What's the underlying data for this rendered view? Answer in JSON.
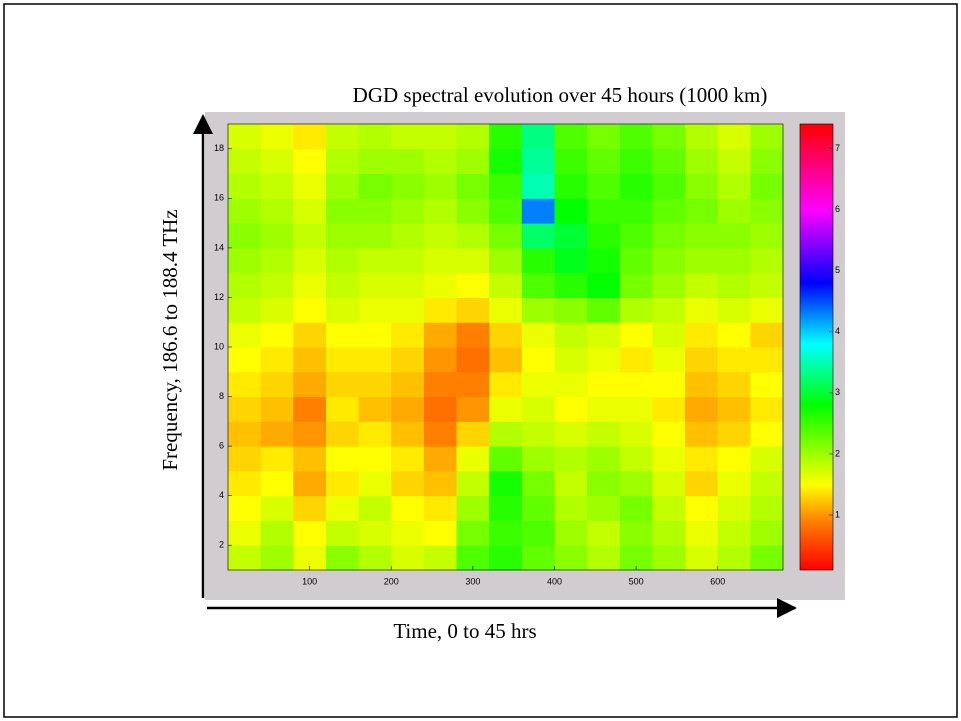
{
  "chart_data": {
    "type": "heatmap",
    "title": "DGD spectral evolution over 45 hours (1000 km)",
    "x_label": "Time, 0 to 45 hrs",
    "y_label": "Frequency, 186.6 to 188.4 THz",
    "x": [
      20,
      60,
      100,
      140,
      180,
      220,
      260,
      300,
      340,
      380,
      420,
      460,
      500,
      540,
      580,
      620,
      660
    ],
    "y": [
      1.5,
      2.5,
      3.5,
      4.5,
      5.5,
      6.5,
      7.5,
      8.5,
      9.5,
      10.5,
      11.5,
      12.5,
      13.5,
      14.5,
      15.5,
      16.5,
      17.5,
      18.5
    ],
    "z": [
      [
        1.8,
        2.0,
        1.6,
        2.1,
        1.9,
        1.7,
        1.8,
        2.4,
        2.6,
        2.3,
        2.1,
        1.9,
        2.2,
        2.0,
        1.7,
        1.9,
        2.2
      ],
      [
        1.6,
        1.9,
        1.5,
        1.8,
        1.7,
        1.6,
        1.5,
        2.2,
        2.5,
        2.4,
        2.0,
        1.8,
        2.1,
        1.9,
        1.6,
        1.8,
        2.0
      ],
      [
        1.5,
        1.7,
        1.3,
        1.6,
        1.8,
        1.5,
        1.4,
        2.0,
        2.6,
        2.3,
        1.9,
        2.0,
        2.2,
        1.8,
        1.5,
        1.7,
        1.9
      ],
      [
        1.4,
        1.5,
        1.1,
        1.4,
        1.6,
        1.3,
        1.2,
        1.8,
        2.7,
        2.2,
        1.8,
        2.1,
        2.0,
        1.7,
        1.3,
        1.6,
        1.8
      ],
      [
        1.3,
        1.4,
        1.2,
        1.5,
        1.5,
        1.4,
        1.1,
        1.6,
        2.3,
        2.0,
        1.9,
        2.0,
        1.8,
        1.6,
        1.4,
        1.5,
        1.7
      ],
      [
        1.2,
        1.1,
        1.0,
        1.3,
        1.4,
        1.2,
        0.9,
        1.3,
        1.9,
        1.8,
        1.7,
        1.8,
        1.7,
        1.5,
        1.2,
        1.3,
        1.5
      ],
      [
        1.3,
        1.2,
        0.9,
        1.4,
        1.2,
        1.1,
        0.8,
        1.0,
        1.6,
        1.7,
        1.5,
        1.6,
        1.6,
        1.4,
        1.1,
        1.2,
        1.4
      ],
      [
        1.4,
        1.3,
        1.1,
        1.3,
        1.3,
        1.2,
        0.9,
        0.9,
        1.4,
        1.6,
        1.6,
        1.5,
        1.5,
        1.5,
        1.2,
        1.3,
        1.5
      ],
      [
        1.5,
        1.4,
        1.2,
        1.4,
        1.4,
        1.3,
        1.0,
        0.8,
        1.2,
        1.5,
        1.7,
        1.6,
        1.4,
        1.6,
        1.3,
        1.4,
        1.4
      ],
      [
        1.6,
        1.5,
        1.3,
        1.5,
        1.5,
        1.4,
        1.1,
        0.9,
        1.3,
        1.6,
        1.8,
        1.7,
        1.5,
        1.7,
        1.4,
        1.5,
        1.3
      ],
      [
        1.8,
        1.7,
        1.5,
        1.7,
        1.6,
        1.6,
        1.4,
        1.3,
        1.6,
        2.0,
        2.1,
        2.3,
        1.9,
        1.8,
        1.6,
        1.7,
        1.6
      ],
      [
        1.9,
        1.8,
        1.6,
        1.8,
        1.7,
        1.7,
        1.6,
        1.5,
        1.8,
        2.4,
        2.6,
        2.8,
        2.2,
        2.0,
        1.8,
        1.9,
        1.8
      ],
      [
        2.0,
        1.9,
        1.7,
        1.9,
        1.8,
        1.8,
        1.7,
        1.7,
        2.0,
        2.6,
        2.9,
        2.7,
        2.3,
        2.1,
        2.0,
        2.0,
        1.9
      ],
      [
        2.1,
        2.0,
        1.8,
        2.0,
        2.0,
        1.9,
        1.8,
        1.9,
        2.2,
        3.2,
        3.0,
        2.6,
        2.4,
        2.2,
        2.1,
        2.1,
        2.0
      ],
      [
        2.0,
        1.9,
        1.7,
        2.1,
        2.1,
        2.0,
        1.9,
        2.1,
        2.4,
        4.3,
        2.8,
        2.5,
        2.5,
        2.3,
        2.2,
        2.0,
        2.1
      ],
      [
        1.9,
        1.8,
        1.6,
        2.0,
        2.2,
        2.1,
        2.0,
        2.2,
        2.5,
        3.5,
        2.6,
        2.4,
        2.6,
        2.4,
        2.1,
        1.9,
        2.2
      ],
      [
        1.8,
        1.7,
        1.5,
        1.9,
        2.0,
        2.0,
        1.9,
        2.0,
        2.7,
        3.4,
        2.5,
        2.3,
        2.5,
        2.3,
        2.0,
        1.8,
        2.1
      ],
      [
        1.7,
        1.6,
        1.4,
        1.8,
        1.9,
        1.8,
        1.8,
        1.9,
        2.6,
        3.3,
        2.4,
        2.2,
        2.4,
        2.2,
        1.9,
        1.7,
        2.0
      ]
    ],
    "xlim": [
      0,
      680
    ],
    "ylim": [
      1,
      19
    ],
    "xticks": [
      100,
      200,
      300,
      400,
      500,
      600
    ],
    "yticks": [
      2,
      4,
      6,
      8,
      10,
      12,
      14,
      16,
      18
    ],
    "clim": [
      0.1,
      7.4
    ],
    "colorbar_ticks": [
      1,
      2,
      3,
      4,
      5,
      6,
      7
    ],
    "colormap": [
      [
        0.1,
        "#ff0000"
      ],
      [
        0.9,
        "#ff8000"
      ],
      [
        1.5,
        "#ffff00"
      ],
      [
        2.8,
        "#00ff00"
      ],
      [
        3.8,
        "#00ffff"
      ],
      [
        4.8,
        "#0000ff"
      ],
      [
        6.0,
        "#ff00ff"
      ],
      [
        7.4,
        "#ff0000"
      ]
    ]
  }
}
